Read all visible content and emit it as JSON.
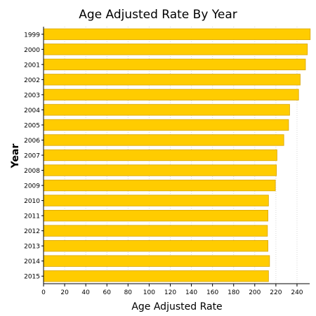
{
  "chart_data": {
    "type": "bar",
    "orientation": "horizontal",
    "title": "Age Adjusted Rate By Year",
    "xlabel": "Age Adjusted Rate",
    "ylabel": "Year",
    "categories": [
      "1999",
      "2000",
      "2001",
      "2002",
      "2003",
      "2004",
      "2005",
      "2006",
      "2007",
      "2008",
      "2009",
      "2010",
      "2011",
      "2012",
      "2013",
      "2014",
      "2015"
    ],
    "values": [
      252.5,
      249.8,
      248.0,
      243.0,
      241.5,
      233.0,
      232.0,
      227.5,
      221.0,
      220.5,
      219.5,
      213.0,
      212.5,
      212.0,
      212.5,
      214.0,
      213.0
    ],
    "xlim": [
      0,
      252
    ],
    "x_ticks": [
      "0",
      "20",
      "40",
      "60",
      "80",
      "100",
      "120",
      "140",
      "160",
      "180",
      "200",
      "220",
      "240"
    ],
    "grid": true,
    "legend": "none",
    "colors": {
      "bar_fill": "#ffcc00",
      "bar_stroke": "#d9a400",
      "axis": "#000000",
      "grid": "#d8d8d8",
      "text": "#000000"
    }
  }
}
